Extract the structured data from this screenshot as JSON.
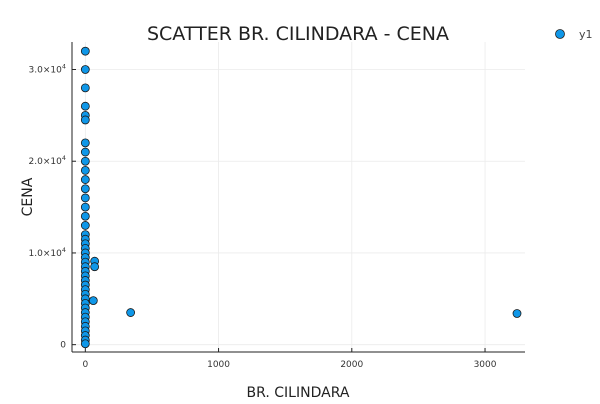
{
  "chart_data": {
    "type": "scatter",
    "title": "SCATTER BR. CILINDARA - CENA",
    "xlabel": "BR. CILINDARA",
    "ylabel": "CENA",
    "xlim": [
      -100,
      3300
    ],
    "ylim": [
      -800,
      33000
    ],
    "grid": true,
    "legend_position": "top-right",
    "x_ticks": [
      0,
      1000,
      2000,
      3000
    ],
    "x_tick_labels": [
      "0",
      "1000",
      "2000",
      "3000"
    ],
    "y_ticks": [
      0,
      10000,
      20000,
      30000
    ],
    "y_tick_labels": [
      {
        "mantissa": "0",
        "exponent": ""
      },
      {
        "mantissa": "1.0×10",
        "exponent": "4"
      },
      {
        "mantissa": "2.0×10",
        "exponent": "4"
      },
      {
        "mantissa": "3.0×10",
        "exponent": "4"
      }
    ],
    "series": [
      {
        "name": "y1",
        "color": "#0f97e8",
        "points": [
          {
            "x": 0,
            "y": 32000
          },
          {
            "x": 0,
            "y": 30000
          },
          {
            "x": 0,
            "y": 28000
          },
          {
            "x": 0,
            "y": 26000
          },
          {
            "x": 0,
            "y": 25000
          },
          {
            "x": 0,
            "y": 24500
          },
          {
            "x": 0,
            "y": 22000
          },
          {
            "x": 0,
            "y": 21000
          },
          {
            "x": 0,
            "y": 20000
          },
          {
            "x": 0,
            "y": 19000
          },
          {
            "x": 0,
            "y": 18000
          },
          {
            "x": 0,
            "y": 17000
          },
          {
            "x": 0,
            "y": 16000
          },
          {
            "x": 0,
            "y": 15000
          },
          {
            "x": 0,
            "y": 14000
          },
          {
            "x": 0,
            "y": 13000
          },
          {
            "x": 0,
            "y": 12000
          },
          {
            "x": 0,
            "y": 11500
          },
          {
            "x": 0,
            "y": 11000
          },
          {
            "x": 0,
            "y": 10500
          },
          {
            "x": 0,
            "y": 10000
          },
          {
            "x": 0,
            "y": 9500
          },
          {
            "x": 0,
            "y": 9000
          },
          {
            "x": 0,
            "y": 8500
          },
          {
            "x": 0,
            "y": 8000
          },
          {
            "x": 0,
            "y": 7500
          },
          {
            "x": 0,
            "y": 7000
          },
          {
            "x": 0,
            "y": 6500
          },
          {
            "x": 0,
            "y": 6000
          },
          {
            "x": 0,
            "y": 5500
          },
          {
            "x": 0,
            "y": 5000
          },
          {
            "x": 0,
            "y": 4500
          },
          {
            "x": 0,
            "y": 4000
          },
          {
            "x": 0,
            "y": 3500
          },
          {
            "x": 0,
            "y": 3000
          },
          {
            "x": 0,
            "y": 2500
          },
          {
            "x": 0,
            "y": 2000
          },
          {
            "x": 0,
            "y": 1500
          },
          {
            "x": 0,
            "y": 1000
          },
          {
            "x": 0,
            "y": 500
          },
          {
            "x": 0,
            "y": 100
          },
          {
            "x": 70,
            "y": 9100
          },
          {
            "x": 70,
            "y": 8500
          },
          {
            "x": 60,
            "y": 4800
          },
          {
            "x": 340,
            "y": 3500
          },
          {
            "x": 3240,
            "y": 3400
          }
        ]
      }
    ]
  }
}
